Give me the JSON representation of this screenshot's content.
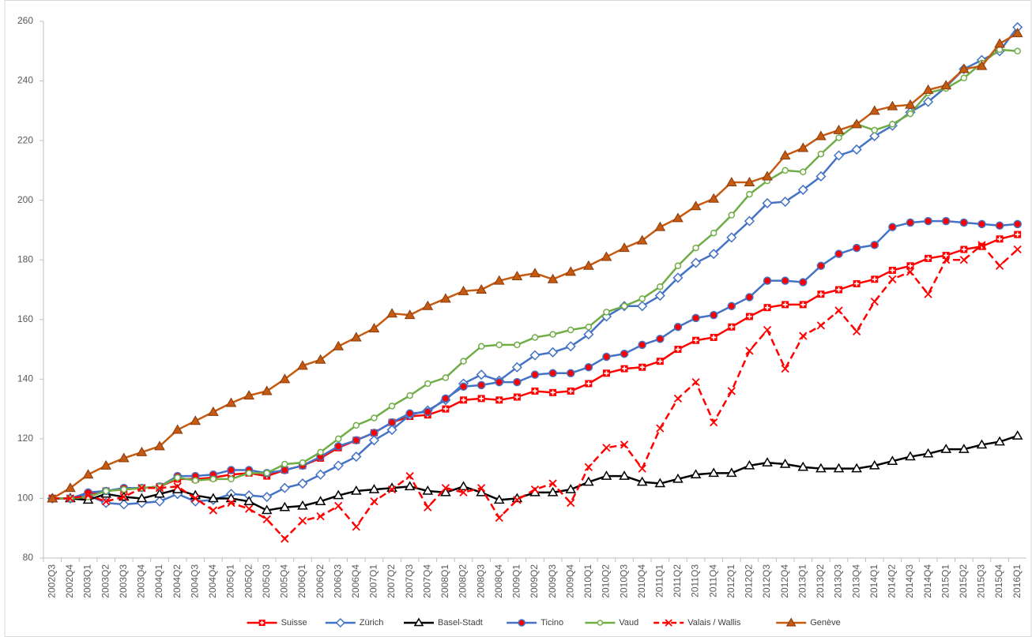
{
  "chart_data": {
    "type": "line",
    "categories": [
      "2002Q3",
      "2002Q4",
      "2003Q1",
      "2003Q2",
      "2003Q3",
      "2003Q4",
      "2004Q1",
      "2004Q2",
      "2004Q3",
      "2004Q4",
      "2005Q1",
      "2005Q2",
      "2005Q3",
      "2005Q4",
      "2006Q1",
      "2006Q2",
      "2006Q3",
      "2006Q4",
      "2007Q1",
      "2007Q2",
      "2007Q3",
      "2007Q4",
      "2008Q1",
      "2008Q2",
      "2008Q3",
      "2008Q4",
      "2009Q1",
      "2009Q2",
      "2009Q3",
      "2009Q4",
      "2010Q1",
      "2010Q2",
      "2010Q3",
      "2010Q4",
      "2011Q1",
      "2011Q2",
      "2011Q3",
      "2011Q4",
      "2012Q1",
      "2012Q2",
      "2012Q3",
      "2012Q4",
      "2013Q1",
      "2013Q2",
      "2013Q3",
      "2013Q4",
      "2014Q1",
      "2014Q2",
      "2014Q3",
      "2014Q4",
      "2015Q1",
      "2015Q2",
      "2015Q3",
      "2015Q4",
      "2016Q1"
    ],
    "ylim": [
      80,
      260
    ],
    "yticks": [
      80,
      100,
      120,
      140,
      160,
      180,
      200,
      220,
      240,
      260
    ],
    "grid": false,
    "legend": "bottom",
    "series": [
      {
        "name": "Suisse",
        "color": "#ff0000",
        "marker": "square-plus",
        "marker_color": "#ff0000",
        "values": [
          100,
          100,
          101.5,
          102.5,
          103,
          103.5,
          104,
          106.5,
          106.5,
          107,
          108,
          108.5,
          107.5,
          109.5,
          111,
          113.5,
          117,
          119.5,
          122,
          125.5,
          127.5,
          128,
          130,
          133,
          133.5,
          133,
          134,
          136,
          135.5,
          136,
          138.5,
          142,
          143.5,
          144,
          146,
          150,
          153,
          154,
          157.5,
          161,
          164,
          165,
          165,
          168.5,
          170,
          172,
          173.5,
          176.5,
          178,
          180.5,
          181.5,
          183.5,
          184.5,
          187,
          188.5
        ]
      },
      {
        "name": "Zürich",
        "color": "#4472c4",
        "marker": "diamond",
        "marker_color": "#4472c4",
        "values": [
          100,
          100,
          101,
          98.5,
          98,
          98.5,
          99,
          101.5,
          99,
          99.5,
          101.5,
          101,
          100.5,
          103.5,
          105,
          108,
          111,
          114,
          119.5,
          123,
          128,
          129.5,
          133,
          138.5,
          141.5,
          139.5,
          144,
          148,
          149,
          151,
          155,
          161,
          164.5,
          164.5,
          168,
          174,
          179,
          182,
          187.5,
          193,
          199,
          199.5,
          203.5,
          208,
          215,
          217,
          221.5,
          225,
          229.5,
          233,
          238,
          244,
          247,
          250,
          258
        ]
      },
      {
        "name": "Basel-Stadt",
        "color": "#000000",
        "marker": "triangle-open",
        "marker_color": "#000000",
        "values": [
          100,
          100,
          99.5,
          101.5,
          100.5,
          100,
          101.5,
          103,
          101,
          100,
          100,
          99,
          96,
          97,
          97.5,
          99,
          101,
          102.5,
          103,
          103.5,
          104,
          102.5,
          102,
          104,
          102,
          99.5,
          100,
          102,
          102,
          103,
          105.5,
          107.5,
          107.5,
          105.5,
          105,
          106.5,
          108,
          108.5,
          108.5,
          111,
          112,
          111.5,
          110.5,
          110,
          110,
          110,
          111,
          112.5,
          114,
          115,
          116.5,
          116.5,
          118,
          119,
          121
        ]
      },
      {
        "name": "Ticino",
        "color": "#4472c4",
        "marker": "circle",
        "marker_color": "#ff0000",
        "values": [
          100,
          100,
          102,
          102.5,
          103.5,
          103.5,
          104,
          107.5,
          107.5,
          108,
          109.5,
          109.5,
          108.5,
          109.5,
          111,
          114,
          117.5,
          119.5,
          122,
          125.5,
          128.5,
          129,
          133.5,
          137.5,
          138,
          139,
          139,
          141.5,
          142,
          142,
          144,
          147.5,
          148.5,
          151.5,
          153.5,
          157.5,
          160.5,
          161.5,
          164.5,
          167.5,
          173,
          173,
          172.5,
          178,
          182,
          184,
          185,
          191,
          192.5,
          193,
          193,
          192.5,
          192,
          191.5,
          192
        ]
      },
      {
        "name": "Vaud",
        "color": "#70ad47",
        "marker": "circle-open",
        "marker_color": "#70ad47",
        "values": [
          100,
          100,
          100.5,
          102.5,
          103,
          103.5,
          104,
          107,
          106,
          106.5,
          106.5,
          108.5,
          108.5,
          111.5,
          112,
          115.5,
          120,
          124.5,
          127,
          131,
          134.5,
          138.5,
          140.5,
          146,
          151,
          151.5,
          151.5,
          154,
          155,
          156.5,
          157.5,
          162.5,
          164.5,
          167,
          171,
          178,
          184,
          189,
          195,
          202,
          206.5,
          210,
          209.5,
          215.5,
          221,
          225.5,
          223.5,
          225.5,
          229,
          236,
          237.5,
          241,
          246,
          250.5,
          250
        ]
      },
      {
        "name": "Valais / Wallis",
        "color": "#ff0000",
        "marker": "x",
        "marker_color": "#ff0000",
        "dash": true,
        "values": [
          100,
          100,
          101,
          99,
          100.5,
          103.5,
          103.5,
          104,
          100,
          96,
          98.5,
          96.5,
          93,
          86.5,
          92.5,
          94,
          97.5,
          90.5,
          99,
          103,
          107.5,
          97,
          103.5,
          102,
          103.5,
          93.5,
          99.5,
          103,
          105,
          98.5,
          110.5,
          117,
          118,
          110,
          123.5,
          133.5,
          139,
          125.5,
          136,
          149.5,
          156.5,
          143.5,
          154.5,
          158,
          163,
          156,
          166,
          173.5,
          176,
          168.5,
          180,
          180,
          185,
          178,
          183.5
        ]
      },
      {
        "name": "Genève",
        "color": "#c55a11",
        "marker": "triangle",
        "marker_color": "#c55a11",
        "values": [
          100,
          103.5,
          108,
          111,
          113.5,
          115.5,
          117.5,
          123,
          126,
          129,
          132,
          134.5,
          136,
          140,
          144.5,
          146.5,
          151,
          154,
          157,
          162,
          161.5,
          164.5,
          167,
          169.5,
          170,
          173,
          174.5,
          175.5,
          173.5,
          176,
          178,
          181,
          184,
          186.5,
          191,
          194,
          198,
          200.5,
          206,
          206,
          208,
          215,
          217.5,
          221.5,
          223.5,
          225.5,
          230,
          231.5,
          232,
          237,
          238.5,
          244,
          245,
          252.5,
          256
        ]
      }
    ]
  }
}
